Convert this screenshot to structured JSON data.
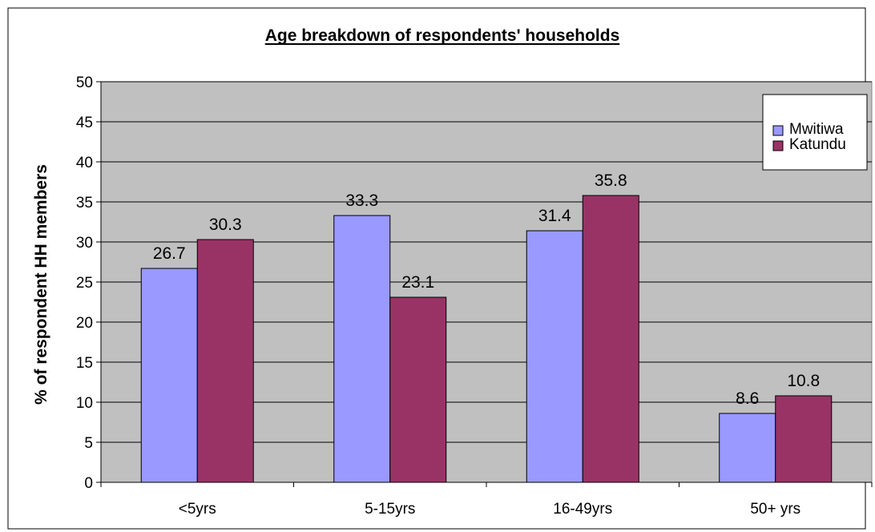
{
  "chart_data": {
    "type": "bar",
    "title": "Age breakdown of respondents' households",
    "xlabel": "",
    "ylabel": "% of respondent HH members",
    "categories": [
      "<5yrs",
      "5-15yrs",
      "16-49yrs",
      "50+ yrs"
    ],
    "series": [
      {
        "name": "Mwitiwa",
        "values": [
          26.7,
          33.3,
          31.4,
          8.6
        ]
      },
      {
        "name": "Katundu",
        "values": [
          30.3,
          23.1,
          35.8,
          10.8
        ]
      }
    ],
    "ylim": [
      0,
      50
    ],
    "yticks": [
      0,
      5,
      10,
      15,
      20,
      25,
      30,
      35,
      40,
      45,
      50
    ],
    "grid": true,
    "legend": "top-right",
    "colors": {
      "Mwitiwa": "#9999ff",
      "Katundu": "#993366",
      "plot_background": "#c0c0c0",
      "gridline": "#000000"
    }
  }
}
